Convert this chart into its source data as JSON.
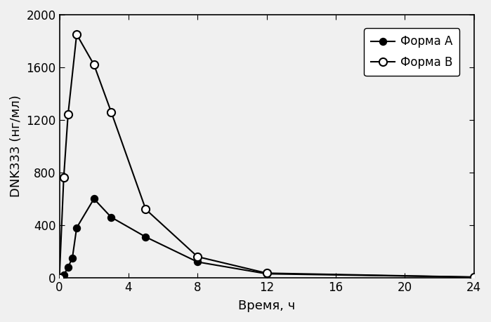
{
  "forma_a_x": [
    0,
    0.25,
    0.5,
    0.75,
    1.0,
    2.0,
    3.0,
    5.0,
    8.0,
    12.0,
    24.0
  ],
  "forma_a_y": [
    0,
    20,
    80,
    150,
    380,
    600,
    460,
    310,
    120,
    30,
    5
  ],
  "forma_b_x": [
    0,
    0.25,
    0.5,
    1.0,
    2.0,
    3.0,
    5.0,
    8.0,
    12.0,
    24.0
  ],
  "forma_b_y": [
    0,
    760,
    1240,
    1850,
    1620,
    1260,
    520,
    160,
    35,
    5
  ],
  "xlabel": "Время, ч",
  "ylabel": "DNK333 (нг/мл)",
  "legend_a": "Форма A",
  "legend_b": "Форма B",
  "xlim": [
    0,
    24
  ],
  "ylim": [
    0,
    2000
  ],
  "xticks": [
    0,
    4,
    8,
    12,
    16,
    20,
    24
  ],
  "yticks": [
    0,
    400,
    800,
    1200,
    1600,
    2000
  ],
  "background_color": "#f0f0f0",
  "plot_bg_color": "#f0f0f0",
  "line_color": "#000000",
  "axis_fontsize": 13,
  "tick_fontsize": 12,
  "legend_fontsize": 12
}
